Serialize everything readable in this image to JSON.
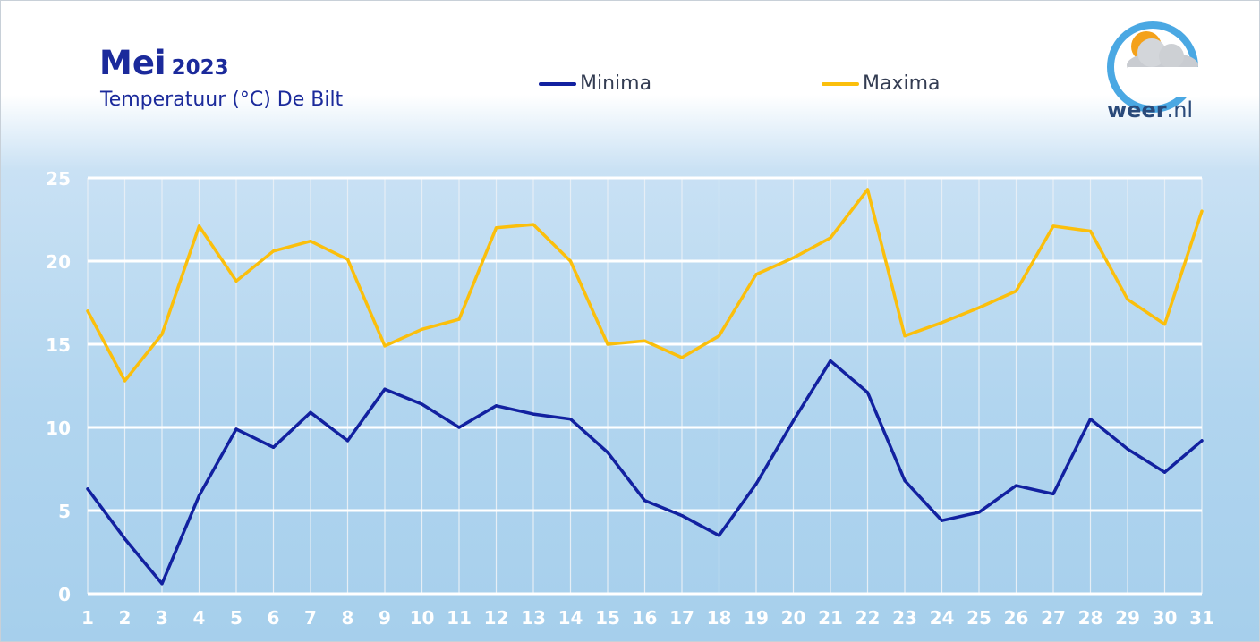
{
  "header": {
    "title_month": "Mei",
    "title_year": "2023",
    "subtitle": "Temperatuur (°C) De Bilt"
  },
  "logo": {
    "brand": "weer",
    "tld": ".nl"
  },
  "colors": {
    "minima": "#1221a0",
    "maxima": "#fbbf0c",
    "grid": "#ffffff",
    "title": "#1b2a9b"
  },
  "chart_data": {
    "type": "line",
    "title": "Mei 2023",
    "subtitle": "Temperatuur (°C) De Bilt",
    "xlabel": "",
    "ylabel": "",
    "x": [
      1,
      2,
      3,
      4,
      5,
      6,
      7,
      8,
      9,
      10,
      11,
      12,
      13,
      14,
      15,
      16,
      17,
      18,
      19,
      20,
      21,
      22,
      23,
      24,
      25,
      26,
      27,
      28,
      29,
      30,
      31
    ],
    "ylim": [
      0,
      25
    ],
    "yticks": [
      0,
      5,
      10,
      15,
      20,
      25
    ],
    "grid": true,
    "legend_position": "top-center",
    "series": [
      {
        "name": "Minima",
        "color": "#1221a0",
        "values": [
          6.3,
          3.3,
          0.6,
          5.9,
          9.9,
          8.8,
          10.9,
          9.2,
          12.3,
          11.4,
          10.0,
          11.3,
          10.8,
          10.5,
          8.5,
          5.6,
          4.7,
          3.5,
          6.6,
          10.4,
          14.0,
          12.1,
          6.8,
          4.4,
          4.9,
          6.5,
          6.0,
          10.5,
          8.7,
          7.3,
          9.2
        ]
      },
      {
        "name": "Maxima",
        "color": "#fbbf0c",
        "values": [
          17.0,
          12.8,
          15.6,
          22.1,
          18.8,
          20.6,
          21.2,
          20.1,
          14.9,
          15.9,
          16.5,
          22.0,
          22.2,
          20.0,
          15.0,
          15.2,
          14.2,
          15.5,
          19.2,
          20.2,
          21.4,
          24.3,
          15.5,
          16.3,
          17.2,
          18.2,
          22.1,
          21.8,
          17.7,
          16.2,
          23.0
        ]
      }
    ]
  }
}
